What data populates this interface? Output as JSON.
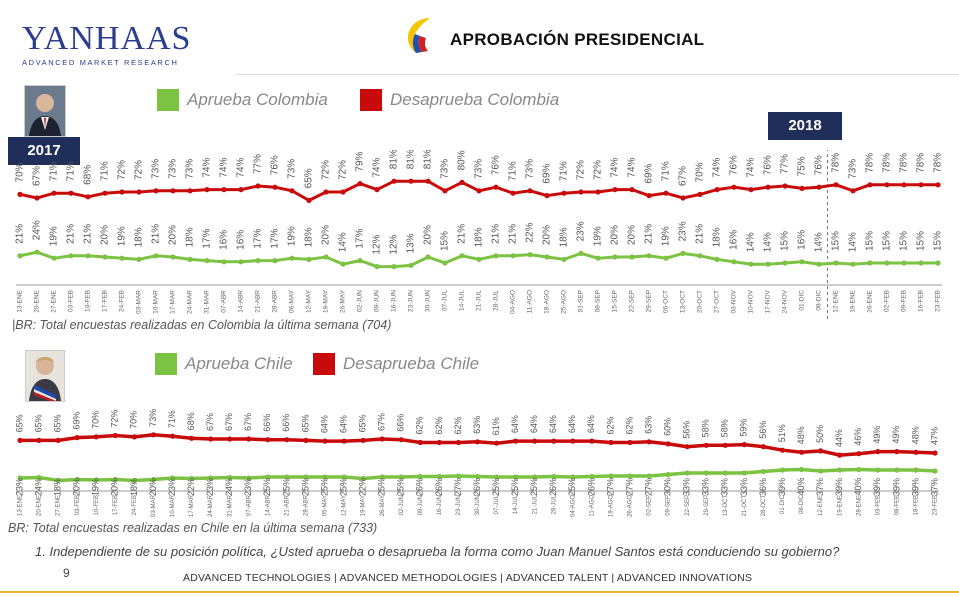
{
  "brand": {
    "logo_text": "YANHAAS",
    "logo_sub": "ADVANCED MARKET RESEARCH"
  },
  "header": {
    "title": "APROBACIÓN PRESIDENCIAL"
  },
  "colors": {
    "approve": "#7cc243",
    "disapprove": "#c90a0a",
    "navy": "#1f2f5a"
  },
  "colombia": {
    "legend_approve": "Aprueba Colombia",
    "legend_disapprove": "Desaprueba Colombia",
    "year_start": "2017",
    "year_mid": "2018",
    "base_note": "|BR: Total encuestas realizadas en Colombia la última semana (704)"
  },
  "chile": {
    "legend_approve": "Aprueba Chile",
    "legend_disapprove": "Desaprueba Chile",
    "base_note": "BR: Total encuestas realizadas en Chile en la última semana (733)"
  },
  "footnote": "1. Independiente de su posición política, ¿Usted aprueba o desaprueba la forma como Juan Manuel Santos está conduciendo su gobierno?",
  "page_number": "9",
  "footer": "ADVANCED TECHNOLOGIES  |  ADVANCED METHODOLOGIES  |  ADVANCED TALENT  |  ADVANCED INNOVATIONS",
  "chart_data": [
    {
      "type": "line",
      "title": "Colombia",
      "categories": [
        "13-ENE",
        "20-ENE",
        "27-ENE",
        "03-FEB",
        "10-FEB",
        "17-FEB",
        "24-FEB",
        "03-MAR",
        "10-MAR",
        "17-MAR",
        "24-MAR",
        "31-MAR",
        "07-ABR",
        "14-ABR",
        "21-ABR",
        "28-ABR",
        "06-MAY",
        "12-MAY",
        "19-MAY",
        "26-MAY",
        "02-JUN",
        "09-JUN",
        "16-JUN",
        "23-JUN",
        "30-JUN",
        "07-JUL",
        "14-JUL",
        "21-JUL",
        "28-JUL",
        "04-AGO",
        "11-AGO",
        "18-AGO",
        "25-AGO",
        "01-SEP",
        "08-SEP",
        "15-SEP",
        "22-SEP",
        "29-SEP",
        "06-OCT",
        "13-OCT",
        "20-OCT",
        "27-OCT",
        "03-NOV",
        "10-NOV",
        "17-NOV",
        "24-NOV",
        "01-DIC",
        "08-DIC",
        "12-ENE",
        "19-ENE",
        "26-ENE",
        "02-FEB",
        "09-FEB",
        "16-FEB",
        "23-FEB"
      ],
      "series": [
        {
          "name": "Desaprueba Colombia",
          "values": [
            70,
            67,
            71,
            71,
            68,
            71,
            72,
            72,
            73,
            73,
            73,
            74,
            74,
            74,
            77,
            76,
            73,
            65,
            72,
            72,
            79,
            74,
            81,
            81,
            81,
            73,
            80,
            73,
            76,
            71,
            73,
            69,
            71,
            72,
            72,
            74,
            74,
            69,
            71,
            67,
            70,
            74,
            76,
            74,
            76,
            77,
            75,
            76,
            78,
            73,
            78,
            78,
            78,
            78,
            78
          ],
          "labels": [
            "70%",
            "67%",
            "71%",
            "71%",
            "68%",
            "71%",
            "72%",
            "72%",
            "73%",
            "73%",
            "73%",
            "74%",
            "74%",
            "74%",
            "77%",
            "76%",
            "73%",
            "65%",
            "72%",
            "72%",
            "79%",
            "74%",
            "81%",
            "81%",
            "81%",
            "73%",
            "80%",
            "73%",
            "76%",
            "71%",
            "73%",
            "69%",
            "71%",
            "72%",
            "72%",
            "74%",
            "74%",
            "69%",
            "71%",
            "67%",
            "70%",
            "74%",
            "76%",
            "74%",
            "76%",
            "77%",
            "75%",
            "76%",
            "78%",
            "73%",
            "78%",
            "78%",
            "78%",
            "78%",
            "78%"
          ]
        },
        {
          "name": "Aprueba Colombia",
          "values": [
            21,
            24,
            19,
            21,
            21,
            20,
            19,
            18,
            21,
            20,
            18,
            17,
            16,
            16,
            17,
            17,
            19,
            18,
            20,
            14,
            17,
            12,
            12,
            13,
            20,
            15,
            21,
            18,
            21,
            21,
            22,
            20,
            18,
            23,
            19,
            20,
            20,
            21,
            19,
            23,
            21,
            18,
            16,
            14,
            14,
            15,
            16,
            14,
            15,
            14,
            15,
            15,
            15,
            15,
            15
          ],
          "labels": [
            "21%",
            "24%",
            "19%",
            "21%",
            "21%",
            "20%",
            "19%",
            "18%",
            "21%",
            "20%",
            "18%",
            "17%",
            "16%",
            "16%",
            "17%",
            "17%",
            "19%",
            "18%",
            "20%",
            "14%",
            "17%",
            "12%",
            "12%",
            "13%",
            "20%",
            "15%",
            "21%",
            "18%",
            "21%",
            "21%",
            "22%",
            "20%",
            "18%",
            "23%",
            "19%",
            "20%",
            "20%",
            "21%",
            "19%",
            "23%",
            "21%",
            "18%",
            "16%",
            "14%",
            "14%",
            "15%",
            "16%",
            "14%",
            "15%",
            "14%",
            "15%",
            "15%",
            "15%",
            "15%",
            "15%"
          ]
        }
      ],
      "ylim": [
        0,
        90
      ]
    },
    {
      "type": "line",
      "title": "Chile",
      "categories": [
        "13-ENE",
        "20-ENE",
        "27-ENE",
        "03-FEB",
        "10-FEB",
        "17-FEB",
        "24-FEB",
        "03-MAR",
        "10-MAR",
        "17-MAR",
        "24-MAR",
        "31-MAR",
        "07-ABR",
        "14-ABR",
        "21-ABR",
        "28-ABR",
        "05-MAY",
        "12-MAY",
        "19-MAY",
        "26-MAY",
        "02-JUN",
        "09-JUN",
        "16-JUN",
        "23-JUN",
        "30-JUN",
        "07-JUL",
        "14-JUL",
        "21-JUL",
        "28-JUL",
        "04-AGO",
        "11-AGO",
        "19-AGO",
        "26-AGO",
        "02-SEP",
        "09-SEP",
        "22-SEP",
        "29-SEP",
        "13-OCT",
        "21-OCT",
        "28-OCT",
        "01-DIC",
        "08-DIC",
        "12-ENE",
        "19-ENE",
        "28-ENE",
        "03-FEB",
        "08-FEB",
        "18-FEB",
        "23-FEB"
      ],
      "series": [
        {
          "name": "Desaprueba Chile",
          "values": [
            65,
            65,
            65,
            69,
            70,
            72,
            70,
            73,
            71,
            68,
            67,
            67,
            67,
            66,
            66,
            65,
            64,
            64,
            65,
            67,
            66,
            62,
            62,
            62,
            63,
            61,
            64,
            64,
            64,
            64,
            64,
            62,
            62,
            63,
            60,
            56,
            58,
            58,
            59,
            56,
            51,
            48,
            50,
            44,
            46,
            49,
            49,
            48,
            47
          ],
          "labels": [
            "65%",
            "65%",
            "65%",
            "69%",
            "70%",
            "72%",
            "70%",
            "73%",
            "71%",
            "68%",
            "67%",
            "67%",
            "67%",
            "66%",
            "66%",
            "65%",
            "64%",
            "64%",
            "65%",
            "67%",
            "66%",
            "62%",
            "62%",
            "62%",
            "63%",
            "61%",
            "64%",
            "64%",
            "64%",
            "64%",
            "64%",
            "62%",
            "62%",
            "63%",
            "60%",
            "56%",
            "58%",
            "58%",
            "59%",
            "56%",
            "51%",
            "48%",
            "50%",
            "44%",
            "46%",
            "49%",
            "49%",
            "48%",
            "47%"
          ]
        },
        {
          "name": "Aprueba Chile",
          "values": [
            23,
            24,
            18,
            20,
            19,
            20,
            18,
            20,
            23,
            22,
            23,
            24,
            23,
            25,
            25,
            25,
            25,
            25,
            22,
            25,
            25,
            26,
            26,
            27,
            26,
            25,
            25,
            25,
            26,
            25,
            26,
            27,
            27,
            27,
            30,
            33,
            33,
            33,
            33,
            36,
            39,
            40,
            37,
            39,
            40,
            39,
            39,
            39,
            37
          ],
          "labels": [
            "23%",
            "24%",
            "18%",
            "20%",
            "19%",
            "20%",
            "18%",
            "20%",
            "23%",
            "22%",
            "23%",
            "24%",
            "23%",
            "25%",
            "25%",
            "25%",
            "25%",
            "25%",
            "22%",
            "25%",
            "25%",
            "26%",
            "26%",
            "27%",
            "26%",
            "25%",
            "25%",
            "25%",
            "26%",
            "25%",
            "26%",
            "27%",
            "27%",
            "27%",
            "30%",
            "33%",
            "33%",
            "33%",
            "33%",
            "36%",
            "39%",
            "40%",
            "37%",
            "39%",
            "40%",
            "39%",
            "39%",
            "39%",
            "37%"
          ]
        }
      ],
      "ylim": [
        0,
        90
      ]
    }
  ]
}
